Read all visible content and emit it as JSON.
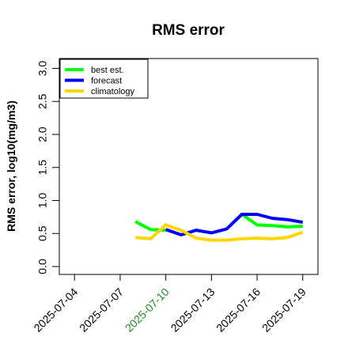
{
  "chart_data": {
    "type": "line",
    "title": "RMS error",
    "xlabel": "",
    "ylabel": "RMS error, log10(mg/m3)",
    "ylim": [
      0,
      3
    ],
    "yticks": [
      "0.0",
      "0.5",
      "1.0",
      "1.5",
      "2.0",
      "2.5",
      "3.0"
    ],
    "xlim": [
      "2025-07-03",
      "2025-07-20"
    ],
    "xticks": [
      {
        "label": "2025-07-04",
        "color": "#000000"
      },
      {
        "label": "2025-07-07",
        "color": "#000000"
      },
      {
        "label": "2025-07-10",
        "color": "#228B22"
      },
      {
        "label": "2025-07-13",
        "color": "#000000"
      },
      {
        "label": "2025-07-16",
        "color": "#000000"
      },
      {
        "label": "2025-07-19",
        "color": "#000000"
      }
    ],
    "grid": false,
    "legend": {
      "position": "top-left"
    },
    "x": [
      "2025-07-08",
      "2025-07-09",
      "2025-07-10",
      "2025-07-11",
      "2025-07-12",
      "2025-07-13",
      "2025-07-14",
      "2025-07-15",
      "2025-07-16",
      "2025-07-17",
      "2025-07-18",
      "2025-07-19"
    ],
    "series": [
      {
        "name": "best est.",
        "color": "#00ff00",
        "values": [
          0.68,
          0.56,
          0.55,
          null,
          null,
          null,
          null,
          0.79,
          0.63,
          0.62,
          0.6,
          0.61
        ]
      },
      {
        "name": "forecast",
        "color": "#0000ff",
        "values": [
          null,
          null,
          0.56,
          0.48,
          0.55,
          0.51,
          0.57,
          0.79,
          0.79,
          0.73,
          0.71,
          0.67
        ]
      },
      {
        "name": "climatology",
        "color": "#ffd700",
        "values": [
          0.44,
          0.42,
          0.63,
          0.55,
          0.43,
          0.4,
          0.4,
          0.42,
          0.43,
          0.42,
          0.44,
          0.52
        ]
      }
    ]
  }
}
